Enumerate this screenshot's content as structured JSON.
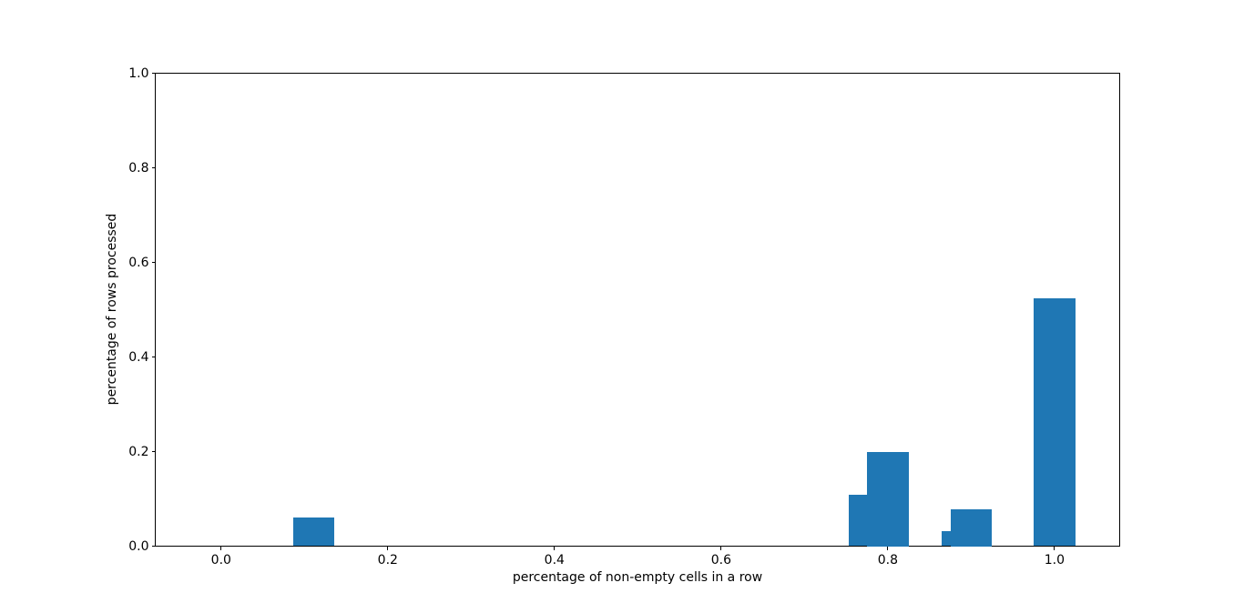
{
  "figure": {
    "background": "#ffffff"
  },
  "chart_data": {
    "type": "bar",
    "title": "",
    "xlabel": "percentage of non-empty cells in a row",
    "ylabel": "percentage of rows processed",
    "xlim": [
      -0.079,
      1.078
    ],
    "ylim": [
      0.0,
      1.0
    ],
    "x_ticks": [
      0.0,
      0.2,
      0.4,
      0.6,
      0.8,
      1.0
    ],
    "x_tick_labels": [
      "0.0",
      "0.2",
      "0.4",
      "0.6",
      "0.8",
      "1.0"
    ],
    "y_ticks": [
      0.0,
      0.2,
      0.4,
      0.6,
      0.8,
      1.0
    ],
    "y_tick_labels": [
      "0.0",
      "0.2",
      "0.4",
      "0.6",
      "0.8",
      "1.0"
    ],
    "grid": false,
    "legend_position": null,
    "bar_width": 0.05,
    "bar_color": "#1f77b4",
    "axis_color": "#000000",
    "text_color": "#000000",
    "bars": [
      {
        "x": 0.111,
        "height": 0.06
      },
      {
        "x": 0.778,
        "height": 0.108
      },
      {
        "x": 0.8,
        "height": 0.2
      },
      {
        "x": 0.889,
        "height": 0.031
      },
      {
        "x": 0.9,
        "height": 0.078
      },
      {
        "x": 1.0,
        "height": 0.524
      }
    ]
  }
}
